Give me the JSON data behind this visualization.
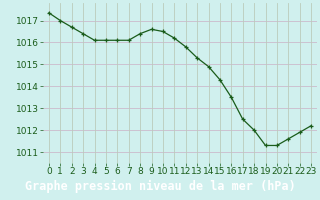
{
  "x": [
    0,
    1,
    2,
    3,
    4,
    5,
    6,
    7,
    8,
    9,
    10,
    11,
    12,
    13,
    14,
    15,
    16,
    17,
    18,
    19,
    20,
    21,
    22,
    23
  ],
  "y": [
    1017.35,
    1017.0,
    1016.7,
    1016.4,
    1016.1,
    1016.1,
    1016.1,
    1016.1,
    1016.4,
    1016.6,
    1016.5,
    1016.2,
    1015.8,
    1015.3,
    1014.9,
    1014.3,
    1013.5,
    1012.5,
    1012.0,
    1011.3,
    1011.3,
    1011.6,
    1011.9,
    1012.2
  ],
  "xlim": [
    -0.5,
    23.5
  ],
  "ylim": [
    1010.5,
    1017.8
  ],
  "yticks": [
    1011,
    1012,
    1013,
    1014,
    1015,
    1016,
    1017
  ],
  "xticks": [
    0,
    1,
    2,
    3,
    4,
    5,
    6,
    7,
    8,
    9,
    10,
    11,
    12,
    13,
    14,
    15,
    16,
    17,
    18,
    19,
    20,
    21,
    22,
    23
  ],
  "line_color": "#1a5c1a",
  "marker": "+",
  "marker_color": "#1a5c1a",
  "bg_color": "#d0f0ee",
  "grid_color_h": "#ccbbcc",
  "grid_color_v": "#bbccbb",
  "xlabel": "Graphe pression niveau de la mer (hPa)",
  "xlabel_bg": "#1a5c1a",
  "tick_color": "#1a5c1a",
  "tick_fontsize": 6.5,
  "xlabel_fontsize": 8.5
}
